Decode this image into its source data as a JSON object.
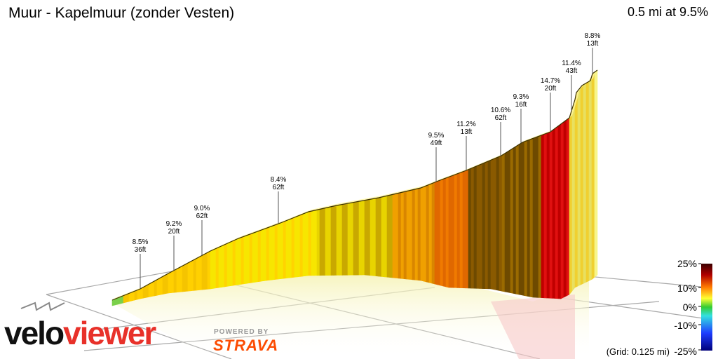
{
  "header": {
    "title": "Muur - Kapelmuur (zonder Vesten)",
    "summary": "0.5 mi at 9.5%"
  },
  "chart_data": {
    "type": "area",
    "style": "3d-elevation-profile",
    "labels": [
      {
        "gradient": "8.5%",
        "rise": "36ft"
      },
      {
        "gradient": "9.2%",
        "rise": "20ft"
      },
      {
        "gradient": "9.0%",
        "rise": "62ft"
      },
      {
        "gradient": "8.4%",
        "rise": "62ft"
      },
      {
        "gradient": "9.5%",
        "rise": "49ft"
      },
      {
        "gradient": "11.2%",
        "rise": "13ft"
      },
      {
        "gradient": "10.6%",
        "rise": "62ft"
      },
      {
        "gradient": "9.3%",
        "rise": "16ft"
      },
      {
        "gradient": "14.7%",
        "rise": "20ft"
      },
      {
        "gradient": "11.4%",
        "rise": "43ft"
      },
      {
        "gradient": "8.8%",
        "rise": "13ft"
      }
    ],
    "legend": {
      "ticks": [
        "25%",
        "10%",
        "0%",
        "-10%",
        "-25%"
      ],
      "colors": [
        "#3a0000",
        "#d40000",
        "#ff7a00",
        "#ffff33",
        "#33cc33",
        "#33e0e0",
        "#1e3cff",
        "#00007a"
      ],
      "placement": "right"
    },
    "grid_note": "(Grid: 0.125 mi)",
    "colors": {
      "low": "#f7f58a",
      "mid": "#ffd000",
      "orange": "#f07a00",
      "red": "#e01010",
      "dark": "#6e4a00"
    }
  },
  "brand": {
    "velo": "velo",
    "viewer": "viewer",
    "powered_by": "POWERED BY",
    "strava": "STRAVA"
  }
}
